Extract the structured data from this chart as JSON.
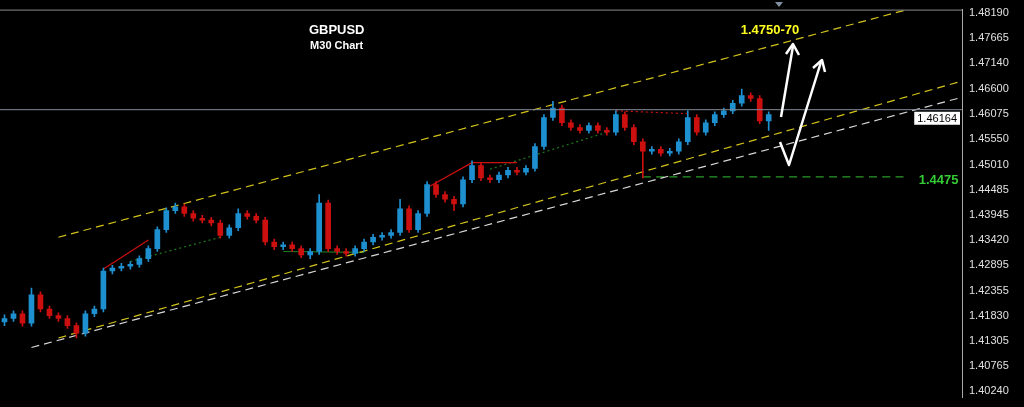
{
  "chart_data": {
    "type": "candlestick",
    "title": "GBPUSD",
    "subtitle": "M30 Chart",
    "categories": [
      null,
      null,
      null,
      null,
      null,
      null,
      null,
      null,
      null,
      null,
      null,
      null,
      null,
      null,
      null,
      null,
      null,
      null,
      null,
      null,
      null,
      null,
      null,
      null,
      null,
      null,
      null,
      null,
      null,
      null,
      null,
      null,
      null,
      null,
      null,
      null,
      null,
      null,
      null,
      null,
      null,
      null,
      null,
      null,
      null,
      null,
      null,
      null,
      null,
      null,
      null,
      null,
      null,
      null,
      null,
      null,
      null,
      null,
      null,
      null,
      null,
      null,
      null,
      null,
      null,
      null,
      null,
      null,
      null,
      null,
      null,
      null,
      null,
      null,
      null,
      null,
      null,
      null,
      null,
      null,
      null,
      null,
      null,
      null,
      null,
      null,
      null,
      null,
      null,
      null,
      null,
      null,
      null,
      null,
      null,
      null,
      null,
      null,
      null,
      null,
      null,
      null,
      null,
      null,
      null,
      null,
      null
    ],
    "colors": [
      "#1e90d0",
      "#1e90d0",
      "#cc1010",
      "#1e90d0",
      "#cc1010",
      "#cc1010",
      "#cc1010",
      "#cc1010",
      "#cc1010",
      "#1e90d0",
      "#1e90d0",
      "#1e90d0",
      "#1e90d0",
      "#1e90d0",
      "#1e90d0",
      "#1e90d0",
      "#1e90d0",
      "#1e90d0",
      "#1e90d0",
      "#1e90d0",
      "#cc1010",
      "#cc1010",
      "#cc1010",
      "#cc1010",
      "#cc1010",
      "#1e90d0",
      "#1e90d0",
      "#cc1010",
      "#cc1010",
      "#cc1010",
      "#cc1010",
      "#1e90d0",
      "#cc1010",
      "#cc1010",
      "#1e90d0",
      "#1e90d0",
      "#cc1010",
      "#cc1010",
      "#cc1010",
      "#1e90d0",
      "#1e90d0",
      "#1e90d0",
      "#1e90d0",
      "#1e90d0",
      "#1e90d0",
      "#cc1010",
      "#1e90d0",
      "#1e90d0",
      "#cc1010",
      "#cc1010",
      "#cc1010",
      "#1e90d0",
      "#1e90d0",
      "#cc1010",
      "#cc1010",
      "#1e90d0",
      "#1e90d0",
      "#cc1010",
      "#1e90d0",
      "#1e90d0",
      "#1e90d0",
      "#1e90d0",
      "#cc1010",
      "#cc1010",
      "#cc1010",
      "#1e90d0",
      "#cc1010",
      "#cc1010",
      "#1e90d0",
      "#cc1010",
      "#cc1010",
      "#cc1010",
      "#1e90d0",
      "#cc1010",
      "#1e90d0",
      "#1e90d0",
      "#1e90d0",
      "#cc1010",
      "#1e90d0",
      "#1e90d0",
      "#1e90d0",
      "#1e90d0",
      "#1e90d0",
      "#cc1010",
      "#cc1010",
      "#1e90d0",
      null,
      null,
      null,
      null,
      null,
      null,
      null,
      null,
      null,
      null,
      null,
      null,
      null,
      null,
      null,
      null,
      null,
      null,
      null,
      null,
      null
    ],
    "ohlc": [
      [
        1.417,
        1.4185,
        1.4162,
        1.4177
      ],
      [
        1.4177,
        1.4193,
        1.4171,
        1.4187
      ],
      [
        1.4187,
        1.4193,
        1.4161,
        1.4167
      ],
      [
        1.4167,
        1.4241,
        1.4161,
        1.4227
      ],
      [
        1.4227,
        1.4233,
        1.4191,
        1.4197
      ],
      [
        1.4197,
        1.4203,
        1.4177,
        1.4183
      ],
      [
        1.4183,
        1.4189,
        1.4171,
        1.4177
      ],
      [
        1.4177,
        1.4183,
        1.4156,
        1.4162
      ],
      [
        1.4162,
        1.4168,
        1.4136,
        1.4146
      ],
      [
        1.4146,
        1.4193,
        1.414,
        1.4187
      ],
      [
        1.4187,
        1.4203,
        1.4181,
        1.4197
      ],
      [
        1.4197,
        1.4283,
        1.4191,
        1.4277
      ],
      [
        1.4277,
        1.4289,
        1.4271,
        1.4283
      ],
      [
        1.4283,
        1.4293,
        1.4277,
        1.4287
      ],
      [
        1.4287,
        1.4297,
        1.4281,
        1.4291
      ],
      [
        1.4291,
        1.4309,
        1.4285,
        1.4303
      ],
      [
        1.4303,
        1.433,
        1.4297,
        1.4324
      ],
      [
        1.4324,
        1.437,
        1.4318,
        1.4364
      ],
      [
        1.4364,
        1.441,
        1.4358,
        1.4404
      ],
      [
        1.4404,
        1.442,
        1.4398,
        1.4412
      ],
      [
        1.4412,
        1.4418,
        1.4392,
        1.4398
      ],
      [
        1.4398,
        1.4404,
        1.4382,
        1.4388
      ],
      [
        1.4388,
        1.4394,
        1.4378,
        1.4384
      ],
      [
        1.4384,
        1.439,
        1.4372,
        1.4378
      ],
      [
        1.4378,
        1.4384,
        1.4346,
        1.4352
      ],
      [
        1.4352,
        1.4374,
        1.4346,
        1.4368
      ],
      [
        1.4368,
        1.4408,
        1.4362,
        1.4398
      ],
      [
        1.4398,
        1.4404,
        1.4386,
        1.4392
      ],
      [
        1.4392,
        1.4398,
        1.4378,
        1.4384
      ],
      [
        1.4384,
        1.439,
        1.4332,
        1.4338
      ],
      [
        1.4338,
        1.4344,
        1.4322,
        1.4328
      ],
      [
        1.4328,
        1.4338,
        1.4322,
        1.4332
      ],
      [
        1.4332,
        1.4338,
        1.4318,
        1.4324
      ],
      [
        1.4324,
        1.433,
        1.4305,
        1.4311
      ],
      [
        1.4311,
        1.4324,
        1.4303,
        1.4318
      ],
      [
        1.4318,
        1.4438,
        1.4312,
        1.442
      ],
      [
        1.442,
        1.4426,
        1.4318,
        1.4324
      ],
      [
        1.4324,
        1.433,
        1.4312,
        1.4318
      ],
      [
        1.4318,
        1.4324,
        1.4308,
        1.4314
      ],
      [
        1.4314,
        1.433,
        1.4308,
        1.4324
      ],
      [
        1.4324,
        1.4344,
        1.4318,
        1.4338
      ],
      [
        1.4338,
        1.4354,
        1.4332,
        1.4348
      ],
      [
        1.4348,
        1.4358,
        1.4342,
        1.4352
      ],
      [
        1.4352,
        1.4364,
        1.4346,
        1.4358
      ],
      [
        1.4358,
        1.4428,
        1.4352,
        1.4408
      ],
      [
        1.4408,
        1.4414,
        1.4358,
        1.4364
      ],
      [
        1.4364,
        1.4404,
        1.4358,
        1.4398
      ],
      [
        1.4398,
        1.4465,
        1.4392,
        1.4459
      ],
      [
        1.4459,
        1.4465,
        1.4432,
        1.4438
      ],
      [
        1.4438,
        1.4444,
        1.4422,
        1.4428
      ],
      [
        1.4428,
        1.4434,
        1.4404,
        1.4418
      ],
      [
        1.4418,
        1.4475,
        1.4412,
        1.4469
      ],
      [
        1.4469,
        1.4509,
        1.4463,
        1.4499
      ],
      [
        1.4499,
        1.4505,
        1.4467,
        1.4473
      ],
      [
        1.4473,
        1.4479,
        1.4463,
        1.4469
      ],
      [
        1.4469,
        1.4485,
        1.4463,
        1.4479
      ],
      [
        1.4479,
        1.4495,
        1.4473,
        1.4489
      ],
      [
        1.4489,
        1.4495,
        1.4479,
        1.4485
      ],
      [
        1.4485,
        1.4499,
        1.4479,
        1.4493
      ],
      [
        1.4493,
        1.4545,
        1.4487,
        1.4539
      ],
      [
        1.4539,
        1.4606,
        1.4533,
        1.46
      ],
      [
        1.46,
        1.4634,
        1.4594,
        1.462
      ],
      [
        1.462,
        1.4626,
        1.4583,
        1.4589
      ],
      [
        1.4589,
        1.4595,
        1.4573,
        1.4579
      ],
      [
        1.4579,
        1.4585,
        1.4567,
        1.4573
      ],
      [
        1.4573,
        1.4589,
        1.4567,
        1.4583
      ],
      [
        1.4583,
        1.4589,
        1.4567,
        1.4573
      ],
      [
        1.4573,
        1.4579,
        1.4563,
        1.4569
      ],
      [
        1.4569,
        1.4614,
        1.4563,
        1.4606
      ],
      [
        1.4606,
        1.4612,
        1.4573,
        1.4579
      ],
      [
        1.4579,
        1.4585,
        1.4543,
        1.4549
      ],
      [
        1.4549,
        1.4555,
        1.4473,
        1.4529
      ],
      [
        1.4529,
        1.4539,
        1.4523,
        1.4533
      ],
      [
        1.4533,
        1.4539,
        1.4519,
        1.4525
      ],
      [
        1.4525,
        1.4535,
        1.4519,
        1.4529
      ],
      [
        1.4529,
        1.4555,
        1.4523,
        1.4549
      ],
      [
        1.4549,
        1.4614,
        1.4543,
        1.46
      ],
      [
        1.46,
        1.4606,
        1.4563,
        1.4569
      ],
      [
        1.4569,
        1.4595,
        1.4563,
        1.4589
      ],
      [
        1.4589,
        1.4612,
        1.4583,
        1.4606
      ],
      [
        1.4606,
        1.462,
        1.46,
        1.4614
      ],
      [
        1.4614,
        1.4636,
        1.4608,
        1.463
      ],
      [
        1.463,
        1.466,
        1.4624,
        1.4646
      ],
      [
        1.4646,
        1.4652,
        1.4634,
        1.464
      ],
      [
        1.464,
        1.4646,
        1.4587,
        1.4593
      ],
      [
        1.4593,
        1.4612,
        1.4573,
        1.4606
      ],
      null,
      null,
      null,
      null,
      null,
      null,
      null,
      null,
      null,
      null,
      null,
      null,
      null,
      null,
      null,
      null,
      null,
      null,
      null,
      null,
      null
    ],
    "series": [
      {
        "type": "line",
        "color": "#d4c41a",
        "line_style": "dashed",
        "values": [
          null,
          null,
          null,
          null,
          null,
          null,
          1.4348,
          null,
          null,
          null,
          null,
          null,
          null,
          null,
          null,
          null,
          null,
          null,
          null,
          null,
          null,
          null,
          null,
          null,
          null,
          null,
          null,
          null,
          null,
          null,
          null,
          null,
          null,
          null,
          null,
          null,
          null,
          null,
          null,
          null,
          null,
          null,
          null,
          null,
          null,
          null,
          null,
          null,
          null,
          null,
          null,
          null,
          null,
          null,
          null,
          null,
          null,
          null,
          null,
          null,
          null,
          null,
          null,
          null,
          null,
          null,
          null,
          null,
          null,
          null,
          null,
          null,
          null,
          null,
          null,
          null,
          null,
          null,
          null,
          null,
          null,
          null,
          null,
          null,
          null,
          null,
          null,
          null,
          null,
          null,
          null,
          null,
          null,
          null,
          null,
          null,
          null,
          null,
          null,
          null,
          1.4825,
          null,
          null,
          null,
          null,
          null,
          null
        ]
      },
      {
        "type": "line",
        "color": "#d4c41a",
        "line_style": "dashed",
        "values": [
          null,
          null,
          null,
          null,
          null,
          null,
          1.4136,
          null,
          null,
          null,
          null,
          null,
          null,
          null,
          null,
          null,
          null,
          null,
          null,
          null,
          null,
          null,
          null,
          null,
          null,
          null,
          null,
          null,
          null,
          null,
          null,
          null,
          null,
          null,
          null,
          null,
          null,
          null,
          null,
          null,
          null,
          null,
          null,
          null,
          null,
          null,
          null,
          null,
          null,
          null,
          null,
          null,
          null,
          null,
          null,
          null,
          null,
          null,
          null,
          null,
          null,
          null,
          null,
          null,
          null,
          null,
          null,
          null,
          null,
          null,
          null,
          null,
          null,
          null,
          null,
          null,
          null,
          null,
          null,
          null,
          null,
          null,
          null,
          null,
          null,
          null,
          null,
          null,
          null,
          null,
          null,
          null,
          null,
          null,
          null,
          null,
          null,
          null,
          null,
          null,
          null,
          null,
          null,
          null,
          null,
          null,
          1.4674
        ]
      },
      {
        "type": "line",
        "color": "#d8d8d8",
        "line_style": "dashed",
        "values": [
          null,
          null,
          null,
          1.4116,
          null,
          null,
          null,
          null,
          null,
          null,
          null,
          null,
          null,
          null,
          null,
          null,
          null,
          null,
          null,
          null,
          null,
          null,
          null,
          null,
          null,
          null,
          null,
          null,
          null,
          null,
          null,
          null,
          null,
          null,
          null,
          null,
          null,
          null,
          null,
          null,
          null,
          null,
          null,
          null,
          null,
          null,
          null,
          null,
          null,
          null,
          null,
          null,
          null,
          null,
          null,
          null,
          null,
          null,
          null,
          null,
          null,
          null,
          null,
          null,
          null,
          null,
          null,
          null,
          null,
          null,
          null,
          null,
          null,
          null,
          null,
          null,
          null,
          null,
          null,
          null,
          null,
          null,
          null,
          null,
          null,
          null,
          null,
          null,
          null,
          null,
          null,
          null,
          null,
          null,
          null,
          null,
          null,
          null,
          null,
          null,
          null,
          null,
          null,
          null,
          null,
          null,
          1.464
        ]
      },
      {
        "type": "line",
        "color": "#2a9a2a",
        "line_style": "dashed",
        "values": [
          null,
          null,
          null,
          null,
          null,
          null,
          null,
          null,
          null,
          null,
          null,
          null,
          null,
          null,
          null,
          null,
          null,
          null,
          null,
          null,
          null,
          null,
          null,
          null,
          null,
          null,
          null,
          null,
          null,
          null,
          null,
          null,
          null,
          null,
          null,
          null,
          null,
          null,
          null,
          null,
          null,
          null,
          null,
          null,
          null,
          null,
          null,
          null,
          null,
          null,
          null,
          null,
          null,
          null,
          null,
          null,
          null,
          null,
          null,
          null,
          null,
          null,
          null,
          null,
          null,
          null,
          null,
          null,
          null,
          null,
          null,
          1.4475,
          null,
          null,
          null,
          null,
          null,
          null,
          null,
          null,
          null,
          null,
          null,
          null,
          null,
          null,
          null,
          null,
          null,
          null,
          null,
          null,
          null,
          null,
          null,
          null,
          null,
          null,
          null,
          null,
          1.4475,
          null,
          null,
          null,
          null,
          null,
          null
        ]
      },
      {
        "type": "line",
        "color": "#cc1010",
        "line_style": "solid",
        "values": [
          null,
          null,
          null,
          null,
          null,
          null,
          null,
          null,
          null,
          null,
          null,
          1.4281,
          null,
          null,
          null,
          null,
          1.4342,
          null,
          null,
          null,
          null,
          null,
          null,
          null,
          null,
          null,
          null,
          null,
          null,
          null,
          null,
          null,
          null,
          null,
          null,
          null,
          null,
          null,
          null,
          null,
          null,
          null,
          null,
          null,
          null,
          null,
          null,
          null,
          null,
          null,
          null,
          null,
          null,
          null,
          null,
          null,
          null,
          null,
          null,
          null,
          null,
          null,
          null,
          null,
          null,
          null,
          null,
          null,
          null,
          null,
          null,
          null,
          null,
          null,
          null,
          null,
          null,
          null,
          null,
          null,
          null,
          null,
          null,
          null,
          null,
          null,
          null,
          null,
          null,
          null,
          null,
          null,
          null,
          null,
          null,
          null,
          null,
          null,
          null,
          null,
          null,
          null,
          null,
          null,
          null,
          null,
          null
        ]
      },
      {
        "type": "line",
        "color": "#1f7a1f",
        "line_style": "dotted",
        "values": [
          null,
          null,
          null,
          null,
          null,
          null,
          null,
          null,
          null,
          null,
          null,
          null,
          null,
          null,
          1.4297,
          null,
          null,
          null,
          null,
          null,
          null,
          null,
          null,
          null,
          1.4348,
          null,
          null,
          null,
          null,
          null,
          null,
          null,
          null,
          null,
          null,
          null,
          null,
          null,
          null,
          null,
          null,
          null,
          null,
          null,
          null,
          null,
          null,
          null,
          null,
          null,
          null,
          null,
          null,
          null,
          null,
          null,
          null,
          null,
          null,
          null,
          null,
          null,
          null,
          null,
          null,
          null,
          null,
          null,
          null,
          null,
          null,
          null,
          null,
          null,
          null,
          null,
          null,
          null,
          null,
          null,
          null,
          null,
          null,
          null,
          null,
          null,
          null,
          null,
          null,
          null,
          null,
          null,
          null,
          null,
          null,
          null,
          null,
          null,
          null,
          null,
          null,
          null,
          null,
          null,
          null,
          null,
          null
        ]
      },
      {
        "type": "line",
        "color": "#1f7a1f",
        "line_style": "solid",
        "values": [
          null,
          null,
          null,
          null,
          null,
          null,
          null,
          null,
          null,
          null,
          null,
          null,
          null,
          null,
          null,
          null,
          null,
          null,
          null,
          null,
          null,
          null,
          null,
          null,
          null,
          null,
          null,
          null,
          null,
          null,
          null,
          1.4318,
          null,
          null,
          null,
          null,
          null,
          null,
          null,
          null,
          1.4316,
          null,
          null,
          null,
          null,
          null,
          null,
          null,
          null,
          null,
          null,
          null,
          null,
          null,
          null,
          null,
          null,
          null,
          null,
          null,
          null,
          null,
          null,
          null,
          null,
          null,
          null,
          null,
          null,
          null,
          null,
          null,
          null,
          null,
          null,
          null,
          null,
          null,
          null,
          null,
          null,
          null,
          null,
          null,
          null,
          null,
          null,
          null,
          null,
          null,
          null,
          null,
          null,
          null,
          null,
          null,
          null,
          null,
          null,
          null,
          null,
          null,
          null,
          null,
          null,
          null,
          null
        ]
      },
      {
        "type": "line",
        "color": "#cc1010",
        "line_style": "solid",
        "values": [
          null,
          null,
          null,
          null,
          null,
          null,
          null,
          null,
          null,
          null,
          null,
          null,
          null,
          null,
          null,
          null,
          null,
          null,
          null,
          null,
          null,
          null,
          null,
          null,
          null,
          null,
          null,
          null,
          null,
          null,
          null,
          null,
          null,
          null,
          null,
          null,
          null,
          null,
          null,
          null,
          null,
          null,
          null,
          null,
          null,
          null,
          null,
          1.4452,
          null,
          null,
          null,
          null,
          1.4505,
          null,
          null,
          null,
          null,
          1.4505,
          null,
          null,
          null,
          null,
          null,
          null,
          null,
          null,
          null,
          null,
          null,
          null,
          null,
          null,
          null,
          null,
          null,
          null,
          null,
          null,
          null,
          null,
          null,
          null,
          null,
          null,
          null,
          null,
          null,
          null,
          null,
          null,
          null,
          null,
          null,
          null,
          null,
          null,
          null,
          null,
          null,
          null,
          null,
          null,
          null,
          null,
          null,
          null,
          null
        ]
      },
      {
        "type": "line",
        "color": "#1f7a1f",
        "line_style": "dotted",
        "values": [
          null,
          null,
          null,
          null,
          null,
          null,
          null,
          null,
          null,
          null,
          null,
          null,
          null,
          null,
          null,
          null,
          null,
          null,
          null,
          null,
          null,
          null,
          null,
          null,
          null,
          null,
          null,
          null,
          null,
          null,
          null,
          null,
          null,
          null,
          null,
          null,
          null,
          null,
          null,
          null,
          null,
          null,
          null,
          null,
          null,
          null,
          null,
          null,
          null,
          null,
          null,
          null,
          null,
          null,
          1.4491,
          null,
          null,
          null,
          null,
          null,
          null,
          null,
          null,
          null,
          null,
          null,
          null,
          1.4569,
          null,
          null,
          null,
          null,
          null,
          null,
          null,
          null,
          null,
          null,
          null,
          null,
          null,
          null,
          null,
          null,
          null,
          null,
          null,
          null,
          null,
          null,
          null,
          null,
          null,
          null,
          null,
          null,
          null,
          null,
          null,
          null,
          null,
          null,
          null,
          null,
          null,
          null,
          null
        ]
      },
      {
        "type": "line",
        "color": "#cc1010",
        "line_style": "dotted",
        "values": [
          null,
          null,
          null,
          null,
          null,
          null,
          null,
          null,
          null,
          null,
          null,
          null,
          null,
          null,
          null,
          null,
          null,
          null,
          null,
          null,
          null,
          null,
          null,
          null,
          null,
          null,
          null,
          null,
          null,
          null,
          null,
          null,
          null,
          null,
          null,
          null,
          null,
          null,
          null,
          null,
          null,
          null,
          null,
          null,
          null,
          null,
          null,
          null,
          null,
          null,
          null,
          null,
          null,
          null,
          null,
          null,
          null,
          null,
          null,
          null,
          null,
          null,
          null,
          null,
          null,
          null,
          null,
          null,
          1.4614,
          null,
          null,
          null,
          null,
          null,
          null,
          null,
          1.4608,
          null,
          null,
          null,
          null,
          null,
          null,
          null,
          null,
          null,
          null,
          null,
          null,
          null,
          null,
          null,
          null,
          null,
          null,
          null,
          null,
          null,
          null,
          null,
          null,
          null,
          null,
          null,
          null,
          null,
          null
        ]
      }
    ],
    "ref_lines": [
      {
        "axis": "y",
        "value": 1.46164,
        "label": "1.46164",
        "color": "#7f8a99"
      }
    ],
    "annotations": [
      "1.4750-70",
      "1.4475"
    ],
    "ylim": [
      1.4011,
      1.4827
    ],
    "yticks": [
      {
        "value": 1.4819,
        "label": "1.48190"
      },
      {
        "value": 1.47665,
        "label": "1.47665"
      },
      {
        "value": 1.4714,
        "label": "1.47140"
      },
      {
        "value": 1.466,
        "label": "1.46600"
      },
      {
        "value": 1.46075,
        "label": "1.46075"
      },
      {
        "value": 1.4555,
        "label": "1.45550"
      },
      {
        "value": 1.4501,
        "label": "1.45010"
      },
      {
        "value": 1.44485,
        "label": "1.44485"
      },
      {
        "value": 1.43945,
        "label": "1.43945"
      },
      {
        "value": 1.4342,
        "label": "1.43420"
      },
      {
        "value": 1.42895,
        "label": "1.42895"
      },
      {
        "value": 1.42355,
        "label": "1.42355"
      },
      {
        "value": 1.4183,
        "label": "1.41830"
      },
      {
        "value": 1.41305,
        "label": "1.41305"
      },
      {
        "value": 1.40765,
        "label": "1.40765"
      },
      {
        "value": 1.4024,
        "label": "1.40240"
      }
    ],
    "tick_labels": "y",
    "grid": false,
    "legend": false
  }
}
